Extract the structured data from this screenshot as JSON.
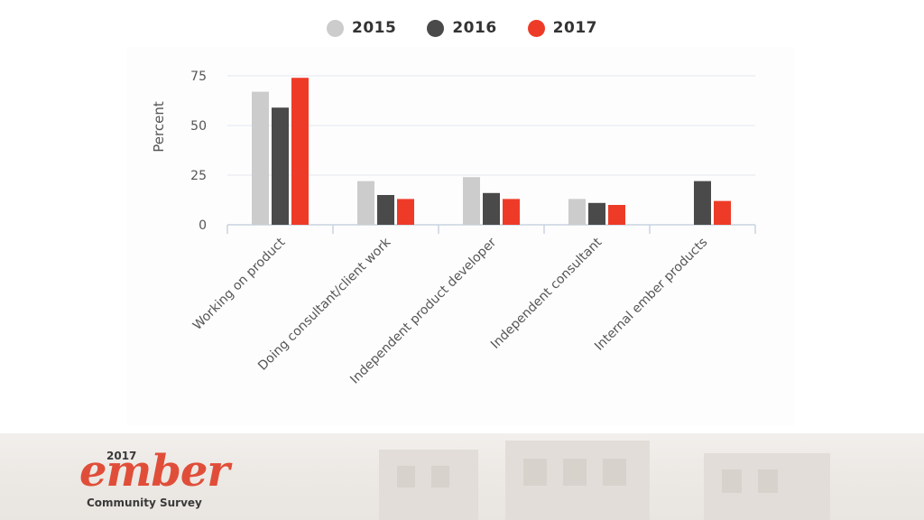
{
  "chart_data": {
    "type": "bar",
    "title": "",
    "xlabel": "",
    "ylabel": "Percent",
    "ylim": [
      0,
      75
    ],
    "yticks": [
      0,
      25,
      50,
      75
    ],
    "grid": true,
    "legend_position": "top-center",
    "categories": [
      "Working on product",
      "Doing consultant/client work",
      "Independent product developer",
      "Independent consultant",
      "Internal ember products"
    ],
    "series": [
      {
        "name": "2015",
        "color": "#cccccc",
        "values": [
          67,
          22,
          24,
          13,
          null
        ]
      },
      {
        "name": "2016",
        "color": "#4a4a4a",
        "values": [
          59,
          15,
          16,
          11,
          22
        ]
      },
      {
        "name": "2017",
        "color": "#ee3b28",
        "values": [
          74,
          13,
          13,
          10,
          12
        ]
      }
    ]
  },
  "branding": {
    "year": "2017",
    "wordmark": "ember",
    "subtitle": "Community Survey",
    "accent_color": "#e04e39"
  }
}
